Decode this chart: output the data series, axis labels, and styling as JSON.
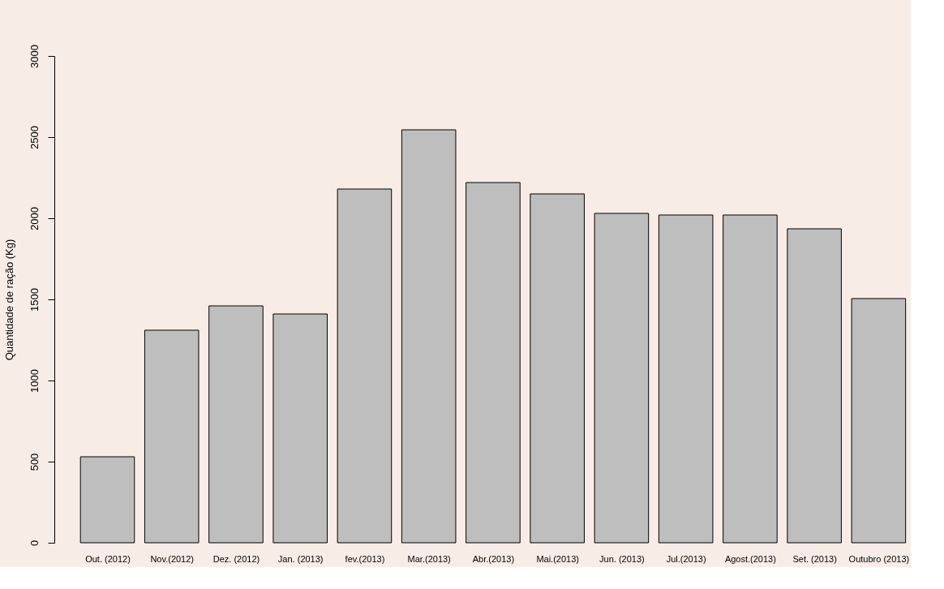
{
  "chart_data": {
    "type": "bar",
    "ylabel": "Quantidade de ração (Kg)",
    "categories": [
      "Out. (2012)",
      "Nov.(2012)",
      "Dez. (2012)",
      "Jan. (2013)",
      "fev.(2013)",
      "Mar.(2013)",
      "Abr.(2013)",
      "Mai.(2013)",
      "Jun. (2013)",
      "Jul.(2013)",
      "Agost.(2013)",
      "Set. (2013)",
      "Outubro (2013)"
    ],
    "values": [
      530,
      1310,
      1460,
      1410,
      2180,
      2545,
      2220,
      2150,
      2030,
      2020,
      2020,
      1935,
      1505
    ],
    "color": "#bebebe",
    "ylim": [
      0,
      3000
    ],
    "yticks": [
      0,
      500,
      1000,
      1500,
      2000,
      2500,
      3000
    ],
    "grid": false
  }
}
